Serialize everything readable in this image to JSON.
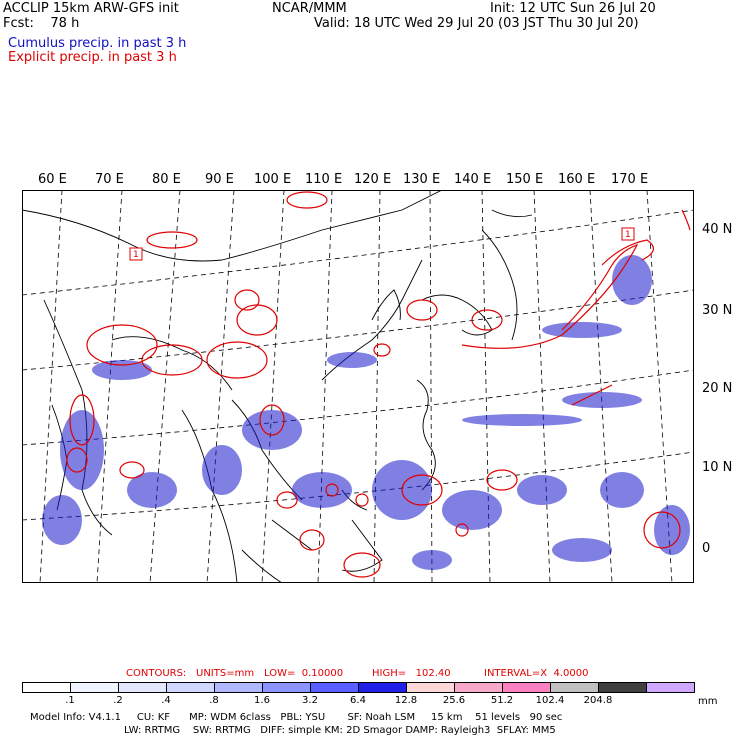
{
  "header": {
    "line1_left": "ACCLIP 15km ARW-GFS init",
    "line1_mid": "NCAR/MMM",
    "line1_right": "Init: 12 UTC Sun 26 Jul 20",
    "line2_left": "Fcst:    78 h",
    "line2_right": "Valid: 18 UTC Wed 29 Jul 20 (03 JST Thu 30 Jul 20)",
    "line3": "Cumulus precip. in past 3 h",
    "line4": "Explicit precip. in past 3 h"
  },
  "map": {
    "lon_labels": [
      "60 E",
      "70 E",
      "80 E",
      "90 E",
      "100 E",
      "110 E",
      "120 E",
      "130 E",
      "140 E",
      "150 E",
      "160 E",
      "170 E"
    ],
    "lat_labels": [
      "40 N",
      "30 N",
      "20 N",
      "10 N",
      "0"
    ],
    "explicit_color": "#e00000",
    "cumulus_color": "#1a1acc",
    "contour_labels": [
      "1",
      "1"
    ]
  },
  "contours": {
    "label": "CONTOURS:",
    "units": "UNITS=mm",
    "low": "LOW=  0.10000",
    "high": "HIGH=   102.40",
    "interval": "INTERVAL=X  4.0000"
  },
  "colorbar": {
    "ticks": [
      ".1",
      ".2",
      ".4",
      ".8",
      "1.6",
      "3.2",
      "6.4",
      "12.8",
      "25.6",
      "51.2",
      "102.4",
      "204.8"
    ],
    "unit": "mm",
    "colors": [
      "#ffffff",
      "#f0f4ff",
      "#e4e8ff",
      "#d0d8ff",
      "#b0b8ff",
      "#8c94ff",
      "#5a60ff",
      "#2020e8",
      "#fcd8d8",
      "#f8a8c8",
      "#ff80c0",
      "#c0c0c0",
      "#404040",
      "#d0a8ff"
    ]
  },
  "footer": {
    "line1": "Model Info: V4.1.1     CU: KF      MP: WDM 6class   PBL: YSU       SF: Noah LSM     15 km    51 levels   90 sec",
    "line2": "LW: RRTMG    SW: RRTMG   DIFF: simple KM: 2D Smagor DAMP: Rayleigh3  SFLAY: MM5"
  }
}
